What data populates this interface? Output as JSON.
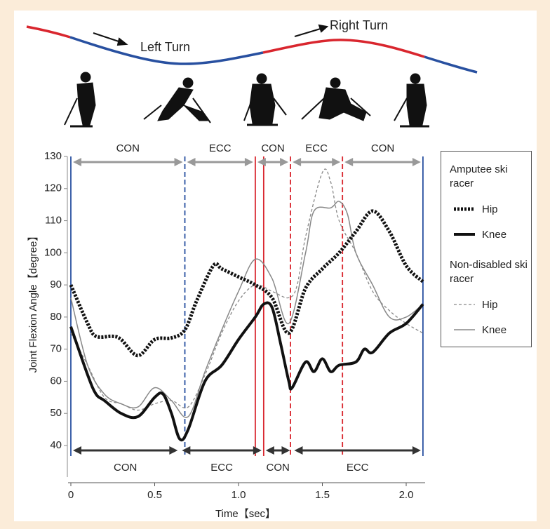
{
  "diagram": {
    "left_turn": "Left Turn",
    "right_turn": "Right Turn"
  },
  "chart_data": {
    "type": "line",
    "ylabel": "Joint Flexion Angle【degree】",
    "xlabel": "Time【sec】",
    "xlim": [
      0,
      2.1
    ],
    "ylim": [
      40,
      130
    ],
    "xticks": [
      0,
      0.5,
      {
        "value": 1,
        "label": "1.0"
      },
      1.5,
      {
        "value": 2,
        "label": "2.0"
      }
    ],
    "yticks": [
      40,
      50,
      60,
      70,
      80,
      90,
      100,
      110,
      120,
      130
    ],
    "legend_groups": [
      "Amputee ski racer",
      "Non-disabled ski racer"
    ],
    "series": [
      {
        "name": "Hip",
        "color": "#111111",
        "style": "dotted-thick",
        "x": [
          0,
          0.1,
          0.15,
          0.25,
          0.3,
          0.4,
          0.5,
          0.6,
          0.68,
          0.75,
          0.85,
          0.9,
          1.0,
          1.1,
          1.2,
          1.3,
          1.4,
          1.5,
          1.6,
          1.7,
          1.8,
          1.9,
          2.0,
          2.1
        ],
        "values": [
          90,
          78,
          74,
          74,
          73,
          68,
          73,
          73.5,
          76,
          85,
          96,
          95,
          92.5,
          90,
          86,
          75,
          89,
          95,
          100,
          106.6,
          113,
          106.6,
          96,
          91
        ]
      },
      {
        "name": "Knee",
        "color": "#111111",
        "style": "solid-thick",
        "x": [
          0,
          0.1,
          0.15,
          0.2,
          0.3,
          0.4,
          0.5,
          0.55,
          0.6,
          0.65,
          0.7,
          0.8,
          0.9,
          1.0,
          1.1,
          1.15,
          1.2,
          1.25,
          1.3,
          1.32,
          1.4,
          1.45,
          1.5,
          1.55,
          1.6,
          1.7,
          1.75,
          1.8,
          1.9,
          2.0,
          2.1
        ],
        "values": [
          77,
          62,
          56,
          54,
          50,
          49,
          55,
          56,
          50,
          42,
          45,
          60,
          65,
          73,
          80,
          84,
          83,
          72,
          60,
          58,
          66,
          63,
          67,
          63,
          65,
          66,
          70,
          69,
          75,
          78,
          84
        ]
      },
      {
        "name": "Hip",
        "color": "#888888",
        "style": "dashed-thin",
        "x": [
          0,
          0.1,
          0.2,
          0.3,
          0.4,
          0.5,
          0.6,
          0.7,
          0.8,
          0.9,
          1.0,
          1.1,
          1.2,
          1.3,
          1.35,
          1.4,
          1.5,
          1.55,
          1.6,
          1.7,
          1.8,
          1.9,
          2.0,
          2.1
        ],
        "values": [
          75,
          65,
          55,
          53,
          51,
          53,
          54,
          52,
          62,
          75,
          85,
          90,
          88,
          86,
          90,
          105,
          125,
          122,
          110,
          100,
          88,
          82,
          78,
          75
        ]
      },
      {
        "name": "Knee",
        "color": "#888888",
        "style": "solid-thin",
        "x": [
          0,
          0.1,
          0.2,
          0.3,
          0.4,
          0.5,
          0.6,
          0.7,
          0.8,
          0.9,
          1.0,
          1.1,
          1.2,
          1.3,
          1.4,
          1.45,
          1.55,
          1.6,
          1.65,
          1.7,
          1.8,
          1.9,
          2.0,
          2.1
        ],
        "values": [
          86,
          65,
          56,
          53,
          52,
          58,
          54,
          49,
          63,
          76,
          88,
          98,
          92,
          78,
          100,
          113,
          114,
          116,
          112,
          100,
          90,
          80,
          80,
          84
        ]
      }
    ],
    "phases_top": [
      {
        "label": "CON",
        "start": 0,
        "end": 0.68
      },
      {
        "label": "ECC",
        "start": 0.68,
        "end": 1.1
      },
      {
        "label": "CON",
        "start": 1.1,
        "end": 1.31
      },
      {
        "label": "ECC",
        "start": 1.31,
        "end": 1.62
      },
      {
        "label": "CON",
        "start": 1.62,
        "end": 2.1
      }
    ],
    "phases_bottom": [
      {
        "label": "CON",
        "start": 0,
        "end": 0.65
      },
      {
        "label": "ECC",
        "start": 0.65,
        "end": 1.15
      },
      {
        "label": "CON",
        "start": 1.15,
        "end": 1.32
      },
      {
        "label": "ECC",
        "start": 1.32,
        "end": 2.1
      }
    ],
    "vlines": [
      {
        "x": 0,
        "color": "#2850a0",
        "dashed": false
      },
      {
        "x": 0.68,
        "color": "#2850a0",
        "dashed": true
      },
      {
        "x": 1.1,
        "color": "#d9262e",
        "dashed": false
      },
      {
        "x": 1.15,
        "color": "#d9262e",
        "dashed": false
      },
      {
        "x": 1.31,
        "color": "#d9262e",
        "dashed": true
      },
      {
        "x": 1.62,
        "color": "#d9262e",
        "dashed": true
      },
      {
        "x": 2.1,
        "color": "#2850a0",
        "dashed": false
      }
    ]
  }
}
